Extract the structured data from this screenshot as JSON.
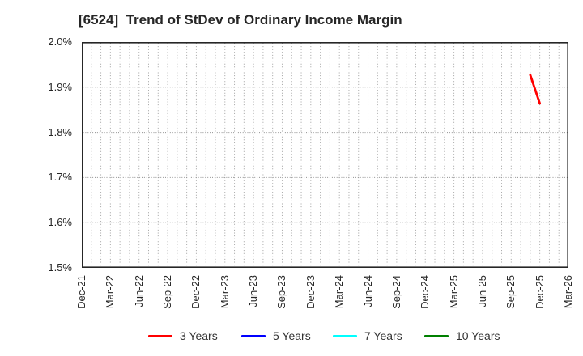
{
  "chart_data": {
    "type": "line",
    "title": "[6524]  Trend of StDev of Ordinary Income Margin",
    "xlabel": "",
    "ylabel": "",
    "ylim": [
      1.5,
      2.0
    ],
    "y_ticks": [
      2.0,
      1.9,
      1.8,
      1.7,
      1.6,
      1.5
    ],
    "y_tick_labels": [
      "2.0%",
      "1.9%",
      "1.8%",
      "1.7%",
      "1.6%",
      "1.5%"
    ],
    "x_tick_labels": [
      "Dec-21",
      "Mar-22",
      "Jun-22",
      "Sep-22",
      "Dec-22",
      "Mar-23",
      "Jun-23",
      "Sep-23",
      "Dec-23",
      "Mar-24",
      "Jun-24",
      "Sep-24",
      "Dec-24",
      "Mar-25",
      "Jun-25",
      "Sep-25",
      "Dec-25",
      "Mar-26"
    ],
    "x_axis": {
      "unit": "month",
      "start_label": "Dec-21",
      "end_label": "Mar-26",
      "months_total": 51,
      "gridline_every_months": 1,
      "label_every_months": 3
    },
    "grid": {
      "vertical_style": "dotted",
      "horizontal_style": "dotted",
      "color": "#a0a0a0",
      "border_color": "#262626"
    },
    "series": [
      {
        "name": "3 Years",
        "color": "#ff0000",
        "points": [
          {
            "x_label": "Nov-25",
            "month_index": 47,
            "value": 1.927
          },
          {
            "x_label": "Dec-25",
            "month_index": 48,
            "value": 1.864
          }
        ]
      },
      {
        "name": "5 Years",
        "color": "#0000ff",
        "points": []
      },
      {
        "name": "7 Years",
        "color": "#00ffff",
        "points": []
      },
      {
        "name": "10 Years",
        "color": "#008000",
        "points": []
      }
    ],
    "legend": {
      "position": "bottom",
      "entries": [
        "3 Years",
        "5 Years",
        "7 Years",
        "10 Years"
      ]
    }
  }
}
